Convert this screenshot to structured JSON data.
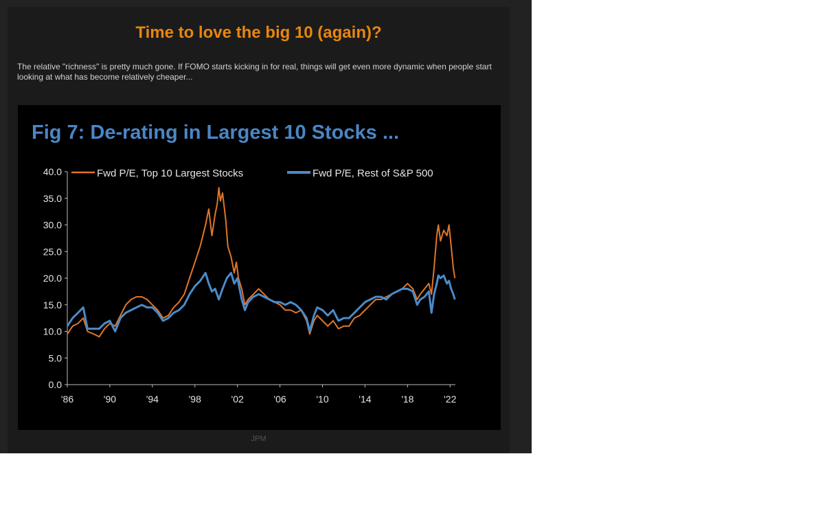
{
  "post": {
    "title": "Time to love the big 10 (again)?",
    "description": "The relative \"richness\" is pretty much gone. If FOMO starts kicking in for real, things will get even more dynamic when people start looking at what has become relatively cheaper...",
    "credit": "JPM"
  },
  "chart_data": {
    "type": "line",
    "title": "Fig 7: De-rating in Largest 10 Stocks ...",
    "xlabel": "",
    "ylabel": "",
    "xlim": [
      1986,
      2022.5
    ],
    "ylim": [
      0,
      40
    ],
    "yticks": [
      "0.0",
      "5.0",
      "10.0",
      "15.0",
      "20.0",
      "25.0",
      "30.0",
      "35.0",
      "40.0"
    ],
    "xticks": [
      {
        "label": "'86",
        "x": 1986
      },
      {
        "label": "'90",
        "x": 1990
      },
      {
        "label": "'94",
        "x": 1994
      },
      {
        "label": "'98",
        "x": 1998
      },
      {
        "label": "'02",
        "x": 2002
      },
      {
        "label": "'06",
        "x": 2006
      },
      {
        "label": "'10",
        "x": 2010
      },
      {
        "label": "'14",
        "x": 2014
      },
      {
        "label": "'18",
        "x": 2018
      },
      {
        "label": "'22",
        "x": 2022
      }
    ],
    "legend_position": "top",
    "grid": false,
    "series": [
      {
        "name": "Fwd P/E, Top 10 Largest Stocks",
        "color": "#e0762b",
        "points": [
          [
            1986.0,
            9.5
          ],
          [
            1986.5,
            11.0
          ],
          [
            1987.0,
            11.5
          ],
          [
            1987.5,
            12.5
          ],
          [
            1987.9,
            10.0
          ],
          [
            1988.5,
            9.5
          ],
          [
            1989.0,
            9.0
          ],
          [
            1989.5,
            10.5
          ],
          [
            1990.0,
            11.5
          ],
          [
            1990.5,
            11.0
          ],
          [
            1991.0,
            13.0
          ],
          [
            1991.5,
            15.0
          ],
          [
            1992.0,
            16.0
          ],
          [
            1992.5,
            16.5
          ],
          [
            1993.0,
            16.5
          ],
          [
            1993.5,
            16.0
          ],
          [
            1994.0,
            15.0
          ],
          [
            1994.5,
            14.0
          ],
          [
            1995.0,
            12.5
          ],
          [
            1995.5,
            13.0
          ],
          [
            1996.0,
            14.5
          ],
          [
            1996.5,
            15.5
          ],
          [
            1997.0,
            17.0
          ],
          [
            1997.5,
            20.0
          ],
          [
            1998.0,
            23.0
          ],
          [
            1998.5,
            26.0
          ],
          [
            1999.0,
            30.0
          ],
          [
            1999.3,
            33.0
          ],
          [
            1999.6,
            28.0
          ],
          [
            1999.9,
            32.0
          ],
          [
            2000.1,
            34.0
          ],
          [
            2000.25,
            37.0
          ],
          [
            2000.4,
            34.5
          ],
          [
            2000.6,
            36.0
          ],
          [
            2000.9,
            31.0
          ],
          [
            2001.1,
            26.0
          ],
          [
            2001.4,
            24.0
          ],
          [
            2001.7,
            21.0
          ],
          [
            2001.9,
            23.0
          ],
          [
            2002.1,
            20.0
          ],
          [
            2002.4,
            18.0
          ],
          [
            2002.7,
            15.0
          ],
          [
            2003.0,
            16.0
          ],
          [
            2003.5,
            17.0
          ],
          [
            2004.0,
            18.0
          ],
          [
            2004.5,
            17.0
          ],
          [
            2005.0,
            16.0
          ],
          [
            2005.5,
            15.5
          ],
          [
            2006.0,
            15.0
          ],
          [
            2006.5,
            14.0
          ],
          [
            2007.0,
            14.0
          ],
          [
            2007.5,
            13.5
          ],
          [
            2008.0,
            14.0
          ],
          [
            2008.5,
            12.0
          ],
          [
            2008.8,
            9.5
          ],
          [
            2009.2,
            12.0
          ],
          [
            2009.5,
            13.0
          ],
          [
            2010.0,
            12.0
          ],
          [
            2010.5,
            11.0
          ],
          [
            2011.0,
            12.0
          ],
          [
            2011.5,
            10.5
          ],
          [
            2012.0,
            11.0
          ],
          [
            2012.5,
            11.0
          ],
          [
            2013.0,
            12.5
          ],
          [
            2013.5,
            13.0
          ],
          [
            2014.0,
            14.0
          ],
          [
            2014.5,
            15.0
          ],
          [
            2015.0,
            16.0
          ],
          [
            2015.5,
            16.0
          ],
          [
            2016.0,
            16.5
          ],
          [
            2016.5,
            17.0
          ],
          [
            2017.0,
            17.5
          ],
          [
            2017.5,
            18.0
          ],
          [
            2018.0,
            19.0
          ],
          [
            2018.5,
            18.0
          ],
          [
            2018.9,
            16.0
          ],
          [
            2019.2,
            17.0
          ],
          [
            2019.6,
            18.0
          ],
          [
            2020.0,
            19.0
          ],
          [
            2020.25,
            17.0
          ],
          [
            2020.5,
            22.0
          ],
          [
            2020.75,
            28.0
          ],
          [
            2020.9,
            30.0
          ],
          [
            2021.1,
            27.0
          ],
          [
            2021.4,
            29.0
          ],
          [
            2021.7,
            28.0
          ],
          [
            2021.9,
            30.0
          ],
          [
            2022.1,
            26.0
          ],
          [
            2022.3,
            22.0
          ],
          [
            2022.45,
            20.0
          ]
        ]
      },
      {
        "name": "Fwd P/E, Rest of S&P 500",
        "color": "#4a8bc9",
        "points": [
          [
            1986.0,
            11.0
          ],
          [
            1986.5,
            12.5
          ],
          [
            1987.0,
            13.5
          ],
          [
            1987.5,
            14.5
          ],
          [
            1987.9,
            10.5
          ],
          [
            1988.5,
            10.5
          ],
          [
            1989.0,
            10.5
          ],
          [
            1989.5,
            11.5
          ],
          [
            1990.0,
            12.0
          ],
          [
            1990.5,
            10.0
          ],
          [
            1991.0,
            12.5
          ],
          [
            1991.5,
            13.5
          ],
          [
            1992.0,
            14.0
          ],
          [
            1992.5,
            14.5
          ],
          [
            1993.0,
            15.0
          ],
          [
            1993.5,
            14.5
          ],
          [
            1994.0,
            14.5
          ],
          [
            1994.5,
            13.5
          ],
          [
            1995.0,
            12.0
          ],
          [
            1995.5,
            12.5
          ],
          [
            1996.0,
            13.5
          ],
          [
            1996.5,
            14.0
          ],
          [
            1997.0,
            15.0
          ],
          [
            1997.5,
            17.0
          ],
          [
            1998.0,
            18.5
          ],
          [
            1998.5,
            19.5
          ],
          [
            1999.0,
            21.0
          ],
          [
            1999.3,
            19.0
          ],
          [
            1999.6,
            17.5
          ],
          [
            1999.9,
            18.0
          ],
          [
            2000.25,
            16.0
          ],
          [
            2000.6,
            18.0
          ],
          [
            2001.0,
            20.0
          ],
          [
            2001.4,
            21.0
          ],
          [
            2001.7,
            19.0
          ],
          [
            2002.0,
            20.0
          ],
          [
            2002.4,
            16.0
          ],
          [
            2002.7,
            14.0
          ],
          [
            2003.0,
            15.5
          ],
          [
            2003.5,
            16.5
          ],
          [
            2004.0,
            17.0
          ],
          [
            2004.5,
            16.5
          ],
          [
            2005.0,
            16.0
          ],
          [
            2005.5,
            15.5
          ],
          [
            2006.0,
            15.5
          ],
          [
            2006.5,
            15.0
          ],
          [
            2007.0,
            15.5
          ],
          [
            2007.5,
            15.0
          ],
          [
            2008.0,
            14.0
          ],
          [
            2008.5,
            12.5
          ],
          [
            2008.8,
            10.0
          ],
          [
            2009.2,
            13.0
          ],
          [
            2009.5,
            14.5
          ],
          [
            2010.0,
            14.0
          ],
          [
            2010.5,
            13.0
          ],
          [
            2011.0,
            14.0
          ],
          [
            2011.5,
            12.0
          ],
          [
            2012.0,
            12.5
          ],
          [
            2012.5,
            12.5
          ],
          [
            2013.0,
            13.5
          ],
          [
            2013.5,
            14.5
          ],
          [
            2014.0,
            15.5
          ],
          [
            2014.5,
            16.0
          ],
          [
            2015.0,
            16.5
          ],
          [
            2015.5,
            16.5
          ],
          [
            2016.0,
            16.0
          ],
          [
            2016.5,
            17.0
          ],
          [
            2017.0,
            17.5
          ],
          [
            2017.5,
            18.0
          ],
          [
            2018.0,
            18.0
          ],
          [
            2018.5,
            17.5
          ],
          [
            2018.9,
            15.0
          ],
          [
            2019.2,
            16.0
          ],
          [
            2019.6,
            16.5
          ],
          [
            2020.0,
            17.5
          ],
          [
            2020.25,
            13.5
          ],
          [
            2020.5,
            17.0
          ],
          [
            2020.75,
            19.0
          ],
          [
            2020.9,
            20.5
          ],
          [
            2021.1,
            20.0
          ],
          [
            2021.4,
            20.5
          ],
          [
            2021.7,
            19.0
          ],
          [
            2021.9,
            19.5
          ],
          [
            2022.1,
            18.0
          ],
          [
            2022.3,
            17.0
          ],
          [
            2022.45,
            16.0
          ]
        ]
      }
    ]
  }
}
